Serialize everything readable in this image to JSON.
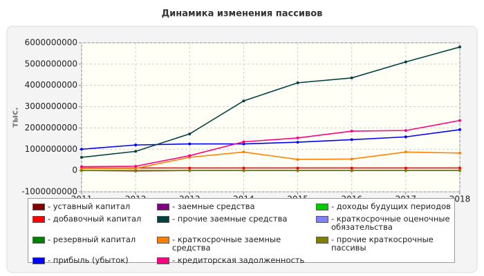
{
  "chart_data": {
    "type": "line",
    "title": "Динамика изменения пассивов",
    "y_label": "тыс.",
    "x": [
      2011,
      2012,
      2013,
      2014,
      2015,
      2016,
      2017,
      2018
    ],
    "xlim": [
      2011,
      2018
    ],
    "xticks": [
      2011,
      2012,
      2013,
      2014,
      2015,
      2016,
      2017,
      2018
    ],
    "ylim": [
      -1000000000,
      6000000000
    ],
    "yticks": [
      -1000000000,
      0,
      1000000000,
      2000000000,
      3000000000,
      4000000000,
      5000000000,
      6000000000
    ],
    "grid": true,
    "series": [
      {
        "name": "- уставный капитал",
        "color": "#800000",
        "values": [
          0,
          -20000000,
          0,
          0,
          0,
          0,
          0,
          0
        ]
      },
      {
        "name": "- добавочный капитал",
        "color": "#ff0000",
        "values": [
          120000000,
          120000000,
          120000000,
          120000000,
          120000000,
          120000000,
          120000000,
          120000000
        ]
      },
      {
        "name": "- резервный капитал",
        "color": "#008000",
        "values": [
          0,
          0,
          0,
          0,
          0,
          0,
          0,
          0
        ]
      },
      {
        "name": "- прибыль (убыток)",
        "color": "#0000ff",
        "values": [
          1000000000,
          1200000000,
          1250000000,
          1250000000,
          1330000000,
          1450000000,
          1580000000,
          1920000000
        ]
      },
      {
        "name": "- заемные средства",
        "color": "#800080",
        "values": [
          0,
          0,
          0,
          0,
          0,
          0,
          0,
          0
        ]
      },
      {
        "name": "- прочие заемные средства",
        "color": "#004040",
        "values": [
          620000000,
          900000000,
          1720000000,
          3270000000,
          4120000000,
          4350000000,
          5100000000,
          5800000000
        ]
      },
      {
        "name": "- краткосрочные заемные средства",
        "color": "#ff8000",
        "values": [
          100000000,
          100000000,
          620000000,
          870000000,
          520000000,
          540000000,
          870000000,
          820000000
        ]
      },
      {
        "name": "- кредиторская задолженность",
        "color": "#ff0080",
        "values": [
          180000000,
          200000000,
          700000000,
          1350000000,
          1530000000,
          1850000000,
          1880000000,
          2350000000
        ]
      },
      {
        "name": "- доходы будущих периодов",
        "color": "#00cc00",
        "values": [
          0,
          0,
          0,
          0,
          0,
          0,
          0,
          0
        ]
      },
      {
        "name": "- краткосрочные оценочные обязательства",
        "color": "#8080ff",
        "values": [
          0,
          0,
          0,
          0,
          0,
          0,
          0,
          0
        ]
      },
      {
        "name": "- прочие краткосрочные пассивы",
        "color": "#808000",
        "values": [
          0,
          0,
          0,
          0,
          0,
          0,
          0,
          0
        ]
      }
    ]
  }
}
